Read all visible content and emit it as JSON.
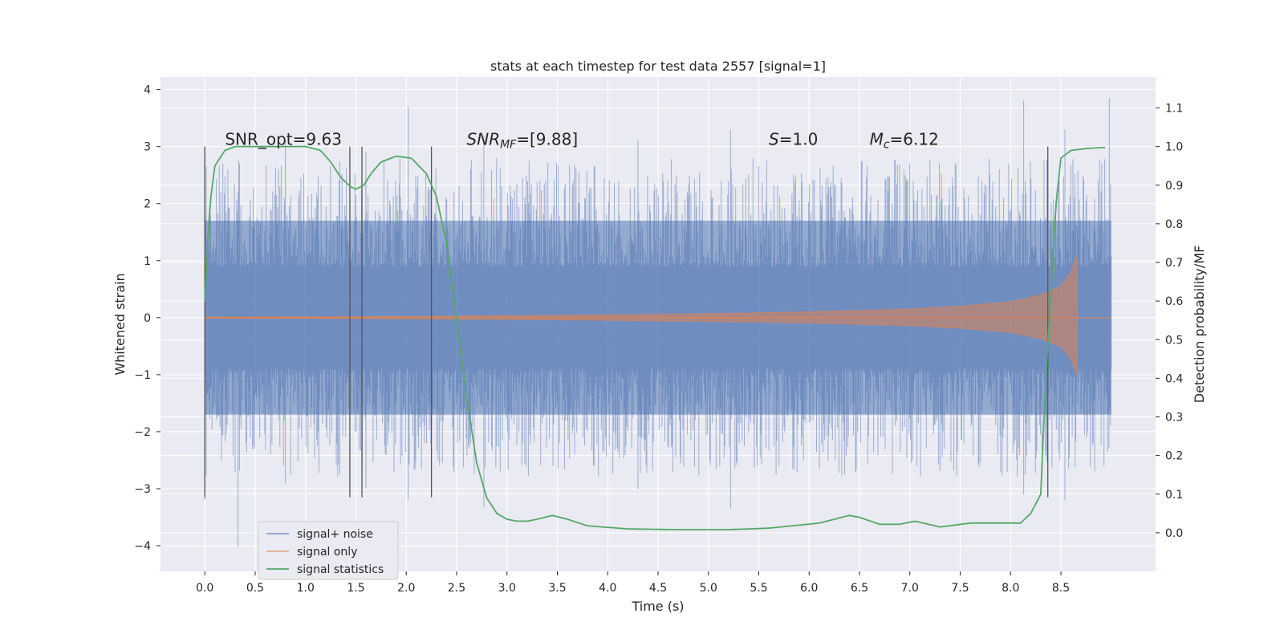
{
  "chart_data": {
    "type": "line",
    "title": "stats at each timestep for test data 2557 [signal=1]",
    "xlabel": "Time (s)",
    "ylabel": "Whitened strain",
    "ylabel_right": "Detection probability/MF",
    "xlim": [
      -0.44,
      9.44
    ],
    "ylim": [
      -4.45,
      4.22
    ],
    "ylim_right": [
      -0.1,
      1.18
    ],
    "x_ticks": [
      "0.0",
      "0.5",
      "1.0",
      "1.5",
      "2.0",
      "2.5",
      "3.0",
      "3.5",
      "4.0",
      "4.5",
      "5.0",
      "5.5",
      "6.0",
      "6.5",
      "7.0",
      "7.5",
      "8.0",
      "8.5"
    ],
    "x_tick_values": [
      0.0,
      0.5,
      1.0,
      1.5,
      2.0,
      2.5,
      3.0,
      3.5,
      4.0,
      4.5,
      5.0,
      5.5,
      6.0,
      6.5,
      7.0,
      7.5,
      8.0,
      8.5
    ],
    "y_ticks": [
      "4",
      "3",
      "2",
      "1",
      "0",
      "−1",
      "−2",
      "−3",
      "−4"
    ],
    "y_tick_values": [
      4,
      3,
      2,
      1,
      0,
      -1,
      -2,
      -3,
      -4
    ],
    "y_right_ticks": [
      "1.1",
      "1.0",
      "0.9",
      "0.8",
      "0.7",
      "0.6",
      "0.5",
      "0.4",
      "0.3",
      "0.2",
      "0.1",
      "0.0"
    ],
    "y_right_tick_values": [
      1.1,
      1.0,
      0.9,
      0.8,
      0.7,
      0.6,
      0.5,
      0.4,
      0.3,
      0.2,
      0.1,
      0.0
    ],
    "grid": true,
    "legend_position": "lower-left",
    "annotations": [
      {
        "id": "snr-opt",
        "text": "SNR_opt=9.63",
        "x": 0.2,
        "y": 3.0
      },
      {
        "id": "snr-mf",
        "text": "SNR_MF=[9.88]",
        "x": 2.6,
        "y": 3.0
      },
      {
        "id": "s-value",
        "text": "S=1.0",
        "x": 5.6,
        "y": 3.0
      },
      {
        "id": "chirp-mass",
        "text": "M_c=6.12",
        "x": 6.6,
        "y": 3.0
      }
    ],
    "vertical_markers": [
      0.0,
      1.44,
      1.56,
      2.25,
      8.37
    ],
    "noise_envelope": {
      "x_start": 0.0,
      "x_end": 9.0,
      "typical_min": -1.7,
      "typical_max": 1.7,
      "peak_max": 3.85,
      "peak_min": -4.02
    },
    "series": [
      {
        "name": "signal+ noise",
        "color": "#4c72b0",
        "axis": "left",
        "x": [
          0.0,
          0.33,
          0.8,
          1.6,
          2.02,
          2.77,
          4.3,
          5.22,
          8.13,
          8.54,
          8.98
        ],
        "upper": [
          3.0,
          2.2,
          3.1,
          2.9,
          3.7,
          3.2,
          3.1,
          3.3,
          3.8,
          3.3,
          3.85
        ],
        "lower": [
          -3.2,
          -4.02,
          -2.9,
          -3.0,
          -3.2,
          -3.33,
          -3.0,
          -3.35,
          -3.1,
          -3.2,
          -1.0
        ]
      },
      {
        "name": "signal only",
        "color": "#dd8452",
        "axis": "left",
        "x": [
          0.0,
          2.0,
          3.5,
          5.0,
          6.0,
          7.0,
          7.5,
          8.0,
          8.3,
          8.5,
          8.6,
          8.66,
          8.68,
          9.0
        ],
        "amplitude": [
          0.01,
          0.02,
          0.04,
          0.07,
          0.1,
          0.15,
          0.2,
          0.28,
          0.4,
          0.55,
          0.8,
          1.1,
          0.0,
          0.0
        ]
      },
      {
        "name": "signal statistics",
        "color": "#55a868",
        "axis": "right",
        "x": [
          0.0,
          0.05,
          0.1,
          0.2,
          0.3,
          1.0,
          1.15,
          1.25,
          1.35,
          1.45,
          1.5,
          1.58,
          1.65,
          1.75,
          1.9,
          2.05,
          2.2,
          2.3,
          2.4,
          2.5,
          2.6,
          2.7,
          2.8,
          2.9,
          3.0,
          3.1,
          3.2,
          3.3,
          3.45,
          3.6,
          3.8,
          4.2,
          4.7,
          5.2,
          5.6,
          6.1,
          6.4,
          6.5,
          6.7,
          6.9,
          7.05,
          7.3,
          7.6,
          8.1,
          8.2,
          8.3,
          8.35,
          8.45,
          8.5,
          8.6,
          8.75,
          8.95
        ],
        "values": [
          0.6,
          0.85,
          0.95,
          0.99,
          1.0,
          1.0,
          0.99,
          0.96,
          0.92,
          0.895,
          0.89,
          0.9,
          0.93,
          0.96,
          0.975,
          0.97,
          0.93,
          0.87,
          0.75,
          0.55,
          0.35,
          0.18,
          0.09,
          0.05,
          0.035,
          0.03,
          0.03,
          0.035,
          0.045,
          0.035,
          0.018,
          0.01,
          0.008,
          0.008,
          0.012,
          0.025,
          0.045,
          0.04,
          0.022,
          0.022,
          0.03,
          0.015,
          0.025,
          0.025,
          0.05,
          0.1,
          0.4,
          0.85,
          0.97,
          0.99,
          0.995,
          0.998
        ]
      }
    ]
  }
}
